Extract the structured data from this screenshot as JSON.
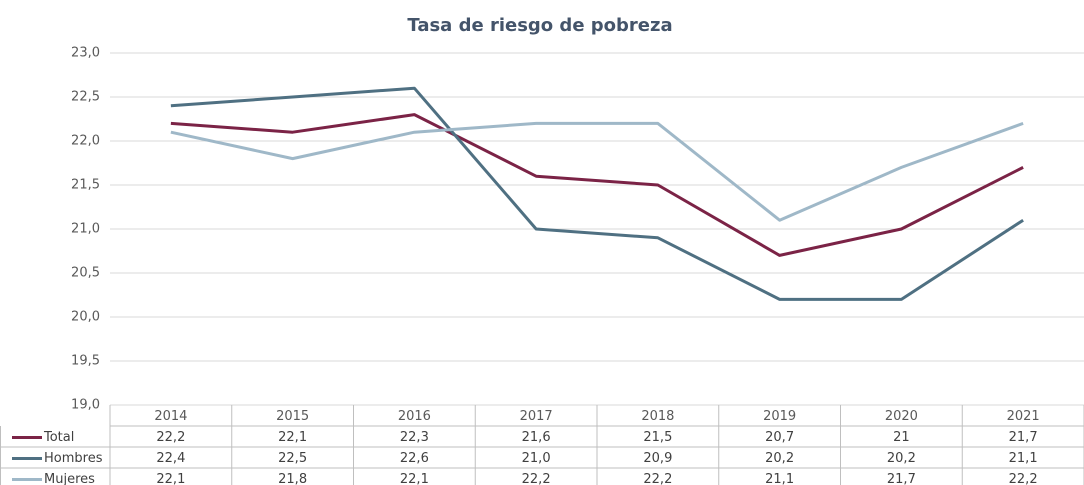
{
  "chart_data": {
    "type": "line",
    "title": "Tasa de riesgo de pobreza",
    "categories": [
      "2014",
      "2015",
      "2016",
      "2017",
      "2018",
      "2019",
      "2020",
      "2021"
    ],
    "series": [
      {
        "name": "Total",
        "color": "#7b2346",
        "values": [
          22.2,
          22.1,
          22.3,
          21.6,
          21.5,
          20.7,
          21,
          21.7
        ],
        "value_labels": [
          "22,2",
          "22,1",
          "22,3",
          "21,6",
          "21,5",
          "20,7",
          "21",
          "21,7"
        ]
      },
      {
        "name": "Hombres",
        "color": "#4f7082",
        "values": [
          22.4,
          22.5,
          22.6,
          21.0,
          20.9,
          20.2,
          20.2,
          21.1
        ],
        "value_labels": [
          "22,4",
          "22,5",
          "22,6",
          "21,0",
          "20,9",
          "20,2",
          "20,2",
          "21,1"
        ]
      },
      {
        "name": "Mujeres",
        "color": "#9fb8c8",
        "values": [
          22.1,
          21.8,
          22.1,
          22.2,
          22.2,
          21.1,
          21.7,
          22.2
        ],
        "value_labels": [
          "22,1",
          "21,8",
          "22,1",
          "22,2",
          "22,2",
          "21,1",
          "21,7",
          "22,2"
        ]
      }
    ],
    "ylim": [
      19,
      23
    ],
    "yticks": [
      {
        "value": 19,
        "label": "19,0"
      },
      {
        "value": 19.5,
        "label": "19,5"
      },
      {
        "value": 20,
        "label": "20,0"
      },
      {
        "value": 20.5,
        "label": "20,5"
      },
      {
        "value": 21,
        "label": "21,0"
      },
      {
        "value": 21.5,
        "label": "21,5"
      },
      {
        "value": 22,
        "label": "22,0"
      },
      {
        "value": 22.5,
        "label": "22,5"
      },
      {
        "value": 23,
        "label": "23,0"
      }
    ],
    "grid": true,
    "legend": "table"
  }
}
